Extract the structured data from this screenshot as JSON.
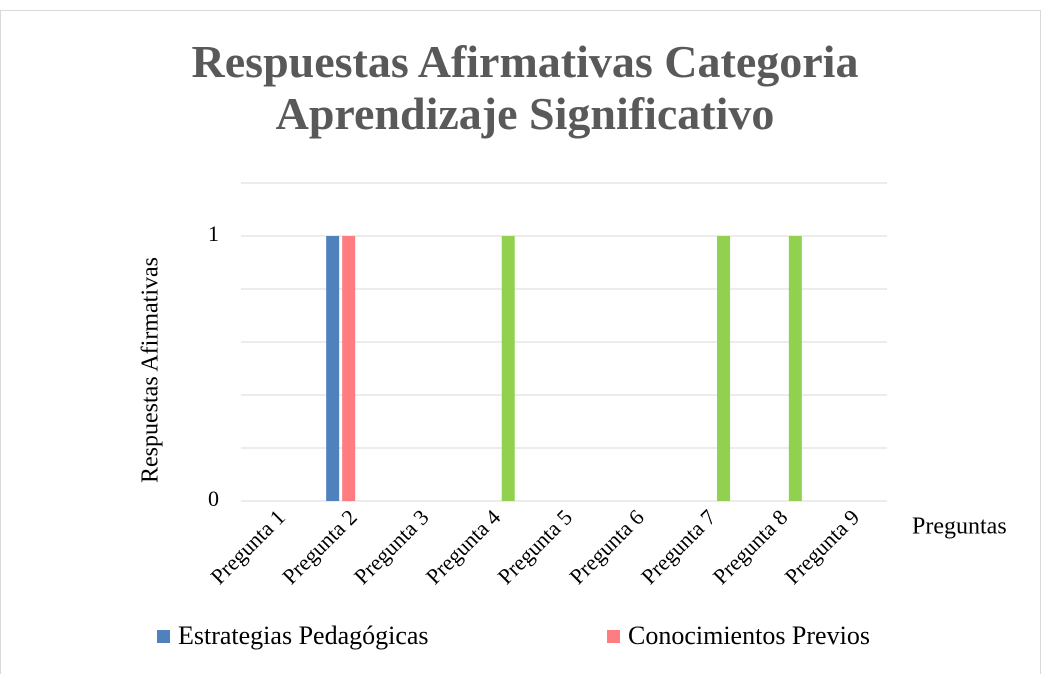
{
  "chart_data": {
    "type": "bar",
    "title": "Respuestas Afirmativas Categoria Aprendizaje Significativo",
    "y_label": "Respuestas Afirmativas",
    "x_label": "Preguntas",
    "categories": [
      "Pregunta 1",
      "Pregunta 2",
      "Pregunta 3",
      "Pregunta 4",
      "Pregunta 5",
      "Pregunta 6",
      "Pregunta 7",
      "Pregunta 8",
      "Pregunta 9"
    ],
    "series": [
      {
        "name": "Estrategias Pedagógicas",
        "color": "#4f81bd",
        "values": [
          0,
          1,
          0,
          0,
          0,
          0,
          0,
          0,
          0
        ]
      },
      {
        "name": "Conocimientos Previos",
        "color": "#ff7c80",
        "values": [
          0,
          1,
          0,
          0,
          0,
          0,
          0,
          0,
          0
        ]
      },
      {
        "color": "#92d050",
        "values": [
          0,
          0,
          0,
          1,
          0,
          0,
          1,
          1,
          0
        ]
      }
    ],
    "ylim": [
      0,
      1.2
    ],
    "yticks": [
      0,
      1
    ],
    "ygrid": [
      0,
      0.2,
      0.4,
      0.6,
      0.8,
      1,
      1.2
    ],
    "grid": true,
    "legend": "bottom"
  }
}
